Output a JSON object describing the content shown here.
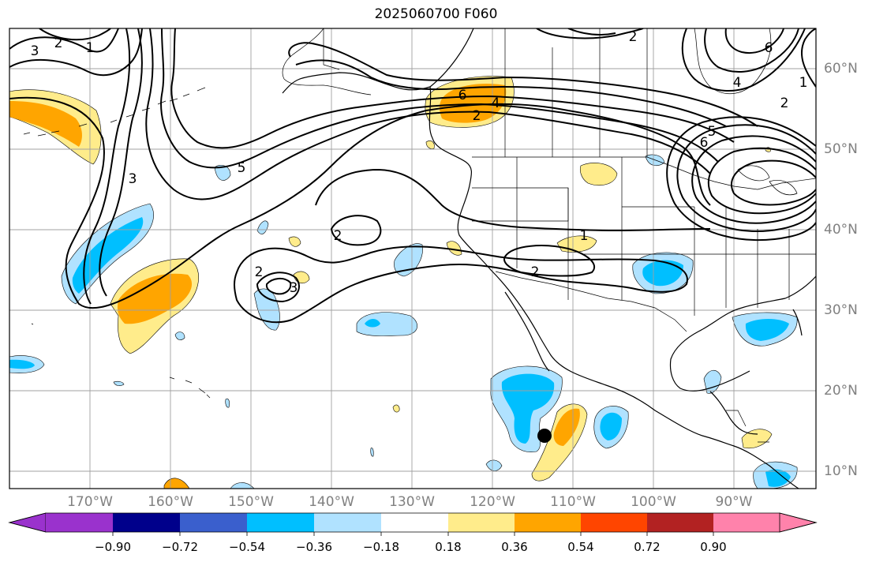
{
  "title": "2025060700 F060",
  "latitude_labels": [
    {
      "text": "60°N",
      "value": 60
    },
    {
      "text": "50°N",
      "value": 50
    },
    {
      "text": "40°N",
      "value": 40
    },
    {
      "text": "30°N",
      "value": 30
    },
    {
      "text": "20°N",
      "value": 20
    },
    {
      "text": "10°N",
      "value": 10
    }
  ],
  "longitude_labels": [
    {
      "text": "170°W",
      "value": -170
    },
    {
      "text": "160°W",
      "value": -160
    },
    {
      "text": "150°W",
      "value": -150
    },
    {
      "text": "140°W",
      "value": -140
    },
    {
      "text": "130°W",
      "value": -130
    },
    {
      "text": "120°W",
      "value": -120
    },
    {
      "text": "110°W",
      "value": -110
    },
    {
      "text": "100°W",
      "value": -100
    },
    {
      "text": "90°W",
      "value": -90
    }
  ],
  "colorbar": {
    "labels": [
      "−0.90",
      "−0.72",
      "−0.54",
      "−0.36",
      "−0.18",
      "0.18",
      "0.36",
      "0.54",
      "0.72",
      "0.90"
    ],
    "colors": [
      "#9a32cd",
      "#00008b",
      "#3a5fcd",
      "#00bfff",
      "#b0e2ff",
      "#ffffff",
      "#ffec8b",
      "#ffa500",
      "#ff4500",
      "#b22222",
      "#ff82ab"
    ]
  },
  "contour_labels": [
    "2",
    "1",
    "3",
    "6",
    "4",
    "2",
    "3",
    "5",
    "6",
    "5",
    "2",
    "3",
    "2",
    "2",
    "1",
    "2",
    "6",
    "4",
    "2",
    "1"
  ],
  "colors": {
    "gridline": "#a0a0a0",
    "axis_label": "#808080",
    "contour": "#000000",
    "marker": "#000000"
  },
  "marker": {
    "name": "storm-center",
    "lon": -114,
    "lat": 14.5
  }
}
